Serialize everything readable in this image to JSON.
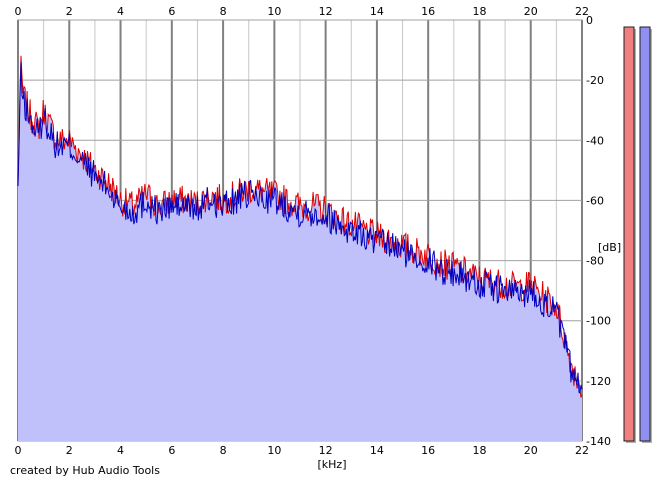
{
  "credit": "created by Hub Audio Tools",
  "colors": {
    "fill": "#c0c0fa",
    "series_left": "#e00000",
    "series_right": "#0000c0",
    "grid": "#a0a0a0",
    "grid_major": "#808080",
    "meter_left": "#f08080",
    "meter_right": "#9090f0"
  },
  "chart_data": {
    "type": "line",
    "title": "",
    "xlabel": "[kHz]",
    "ylabel": "[dB]",
    "xlim": [
      0,
      22
    ],
    "ylim": [
      -140,
      0
    ],
    "xticks": [
      "0",
      "2",
      "4",
      "6",
      "8",
      "10",
      "12",
      "14",
      "16",
      "18",
      "20",
      "22"
    ],
    "yticks": [
      "0",
      "-20",
      "-40",
      "-60",
      "-80",
      "-100",
      "-120",
      "-140"
    ],
    "grid": true,
    "legend": "none",
    "x": [
      0.0,
      0.1,
      0.2,
      0.5,
      0.8,
      1.0,
      1.5,
      2.0,
      2.5,
      3.0,
      3.5,
      4.0,
      4.5,
      5.0,
      5.5,
      6.0,
      6.5,
      7.0,
      7.5,
      8.0,
      8.5,
      9.0,
      9.5,
      10.0,
      10.5,
      11.0,
      11.5,
      12.0,
      12.5,
      13.0,
      13.5,
      14.0,
      14.5,
      15.0,
      15.5,
      16.0,
      16.5,
      17.0,
      17.5,
      18.0,
      18.5,
      19.0,
      19.5,
      20.0,
      20.5,
      21.0,
      21.3,
      21.6,
      22.0
    ],
    "series": [
      {
        "values": [
          -55,
          -15,
          -25,
          -32,
          -36,
          -30,
          -40,
          -40,
          -45,
          -50,
          -54,
          -60,
          -62,
          -58,
          -62,
          -60,
          -60,
          -61,
          -58,
          -60,
          -58,
          -56,
          -57,
          -58,
          -60,
          -62,
          -62,
          -63,
          -66,
          -68,
          -70,
          -72,
          -73,
          -75,
          -77,
          -78,
          -81,
          -82,
          -84,
          -86,
          -87,
          -88,
          -89,
          -88,
          -92,
          -95,
          -105,
          -115,
          -123
        ]
      },
      {
        "values": [
          -57,
          -17,
          -27,
          -34,
          -38,
          -32,
          -42,
          -42,
          -47,
          -52,
          -56,
          -62,
          -64,
          -60,
          -64,
          -62,
          -62,
          -63,
          -60,
          -62,
          -60,
          -58,
          -59,
          -60,
          -62,
          -64,
          -64,
          -65,
          -68,
          -70,
          -72,
          -74,
          -75,
          -77,
          -79,
          -80,
          -83,
          -84,
          -86,
          -88,
          -89,
          -90,
          -91,
          -90,
          -94,
          -97,
          -107,
          -117,
          -125
        ]
      }
    ],
    "meters": [
      {
        "level": 1.0
      },
      {
        "level": 1.0
      }
    ]
  }
}
